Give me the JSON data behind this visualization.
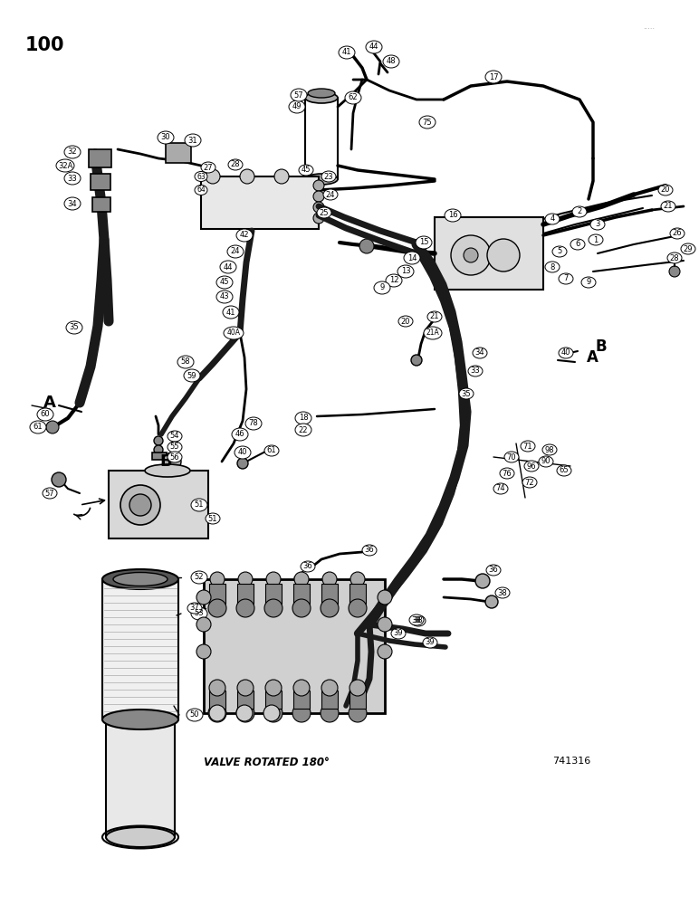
{
  "page_number": "100",
  "dots_top_right": ".....",
  "bottom_label": "VALVE ROTATED 180°",
  "bottom_right_code": "741316",
  "bg": "#ffffff",
  "lc": "#000000",
  "gray1": "#555555",
  "gray2": "#888888",
  "gray3": "#cccccc"
}
